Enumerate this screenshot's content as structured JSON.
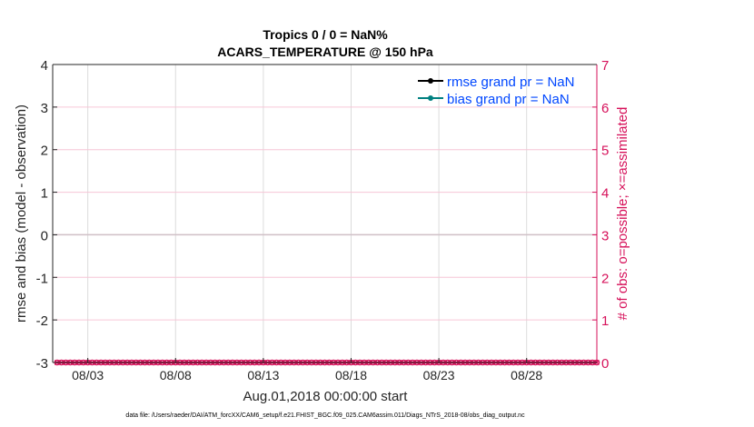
{
  "chart_data": {
    "type": "line",
    "title_line1": "Tropics 0 / 0 = NaN%",
    "title_line2": "ACARS_TEMPERATURE @ 150 hPa",
    "xlabel": "Aug.01,2018 00:00:00 start",
    "ylabel_left": "rmse and bias (model - observation)",
    "ylabel_right": "# of obs: o=possible; ×=assimilated",
    "ylim_left": [
      -3,
      4
    ],
    "ylim_right": [
      0,
      7
    ],
    "yticks_left": [
      "-3",
      "-2",
      "-1",
      "0",
      "1",
      "2",
      "3",
      "4"
    ],
    "yticks_right": [
      "0",
      "1",
      "2",
      "3",
      "4",
      "5",
      "6",
      "7"
    ],
    "xlim_days": [
      0,
      31
    ],
    "xticks": [
      {
        "label": "08/03",
        "day": 2
      },
      {
        "label": "08/08",
        "day": 7
      },
      {
        "label": "08/13",
        "day": 12
      },
      {
        "label": "08/18",
        "day": 17
      },
      {
        "label": "08/23",
        "day": 22
      },
      {
        "label": "08/28",
        "day": 27
      }
    ],
    "grid": true,
    "legend_placement": "top-right",
    "series": [
      {
        "name": "rmse grand pr = NaN",
        "color": "#000000",
        "values": "NaN"
      },
      {
        "name": "bias grand pr = NaN",
        "color": "#008080",
        "values": "NaN"
      }
    ],
    "obs_counts": {
      "color": "#d6115a",
      "time_step_hours": 6,
      "first_day": 0.25,
      "possible": [
        0,
        0,
        0,
        0,
        0,
        0,
        0,
        0,
        0,
        0,
        0,
        0,
        0,
        0,
        0,
        0,
        0,
        0,
        0,
        0,
        0,
        0,
        0,
        0,
        0,
        0,
        0,
        0,
        0,
        0,
        0,
        0,
        0,
        0,
        0,
        0,
        0,
        0,
        0,
        0,
        0,
        0,
        0,
        0,
        0,
        0,
        0,
        0,
        0,
        0,
        0,
        0,
        0,
        0,
        0,
        0,
        0,
        0,
        0,
        0,
        0,
        0,
        0,
        0,
        0,
        0,
        0,
        0,
        0,
        0,
        0,
        0,
        0,
        0,
        0,
        0,
        0,
        0,
        0,
        0,
        0,
        0,
        0,
        0,
        0,
        0,
        0,
        0,
        0,
        0,
        0,
        0,
        0,
        0,
        0,
        0,
        0,
        0,
        0,
        0,
        0,
        0,
        0,
        0,
        0,
        0,
        0,
        0,
        0,
        0,
        0,
        0,
        0,
        0,
        0,
        0,
        0,
        0,
        0,
        0,
        0,
        0,
        0,
        0
      ],
      "assimilated": [
        0,
        0,
        0,
        0,
        0,
        0,
        0,
        0,
        0,
        0,
        0,
        0,
        0,
        0,
        0,
        0,
        0,
        0,
        0,
        0,
        0,
        0,
        0,
        0,
        0,
        0,
        0,
        0,
        0,
        0,
        0,
        0,
        0,
        0,
        0,
        0,
        0,
        0,
        0,
        0,
        0,
        0,
        0,
        0,
        0,
        0,
        0,
        0,
        0,
        0,
        0,
        0,
        0,
        0,
        0,
        0,
        0,
        0,
        0,
        0,
        0,
        0,
        0,
        0,
        0,
        0,
        0,
        0,
        0,
        0,
        0,
        0,
        0,
        0,
        0,
        0,
        0,
        0,
        0,
        0,
        0,
        0,
        0,
        0,
        0,
        0,
        0,
        0,
        0,
        0,
        0,
        0,
        0,
        0,
        0,
        0,
        0,
        0,
        0,
        0,
        0,
        0,
        0,
        0,
        0,
        0,
        0,
        0,
        0,
        0,
        0,
        0,
        0,
        0,
        0,
        0,
        0,
        0,
        0,
        0,
        0,
        0,
        0,
        0
      ]
    },
    "footnote": "data file: /Users/raeder/DAI/ATM_forcXX/CAM6_setup/f.e21.FHIST_BGC.f09_025.CAM6assim.011/Diags_NTrS_2018-08/obs_diag_output.nc"
  },
  "colors": {
    "left_axis": "#262626",
    "right_axis": "#d6115a",
    "legend_text": "#0047ff",
    "grid": "#dcdcdc",
    "right_grid": "#f6c6d6"
  }
}
